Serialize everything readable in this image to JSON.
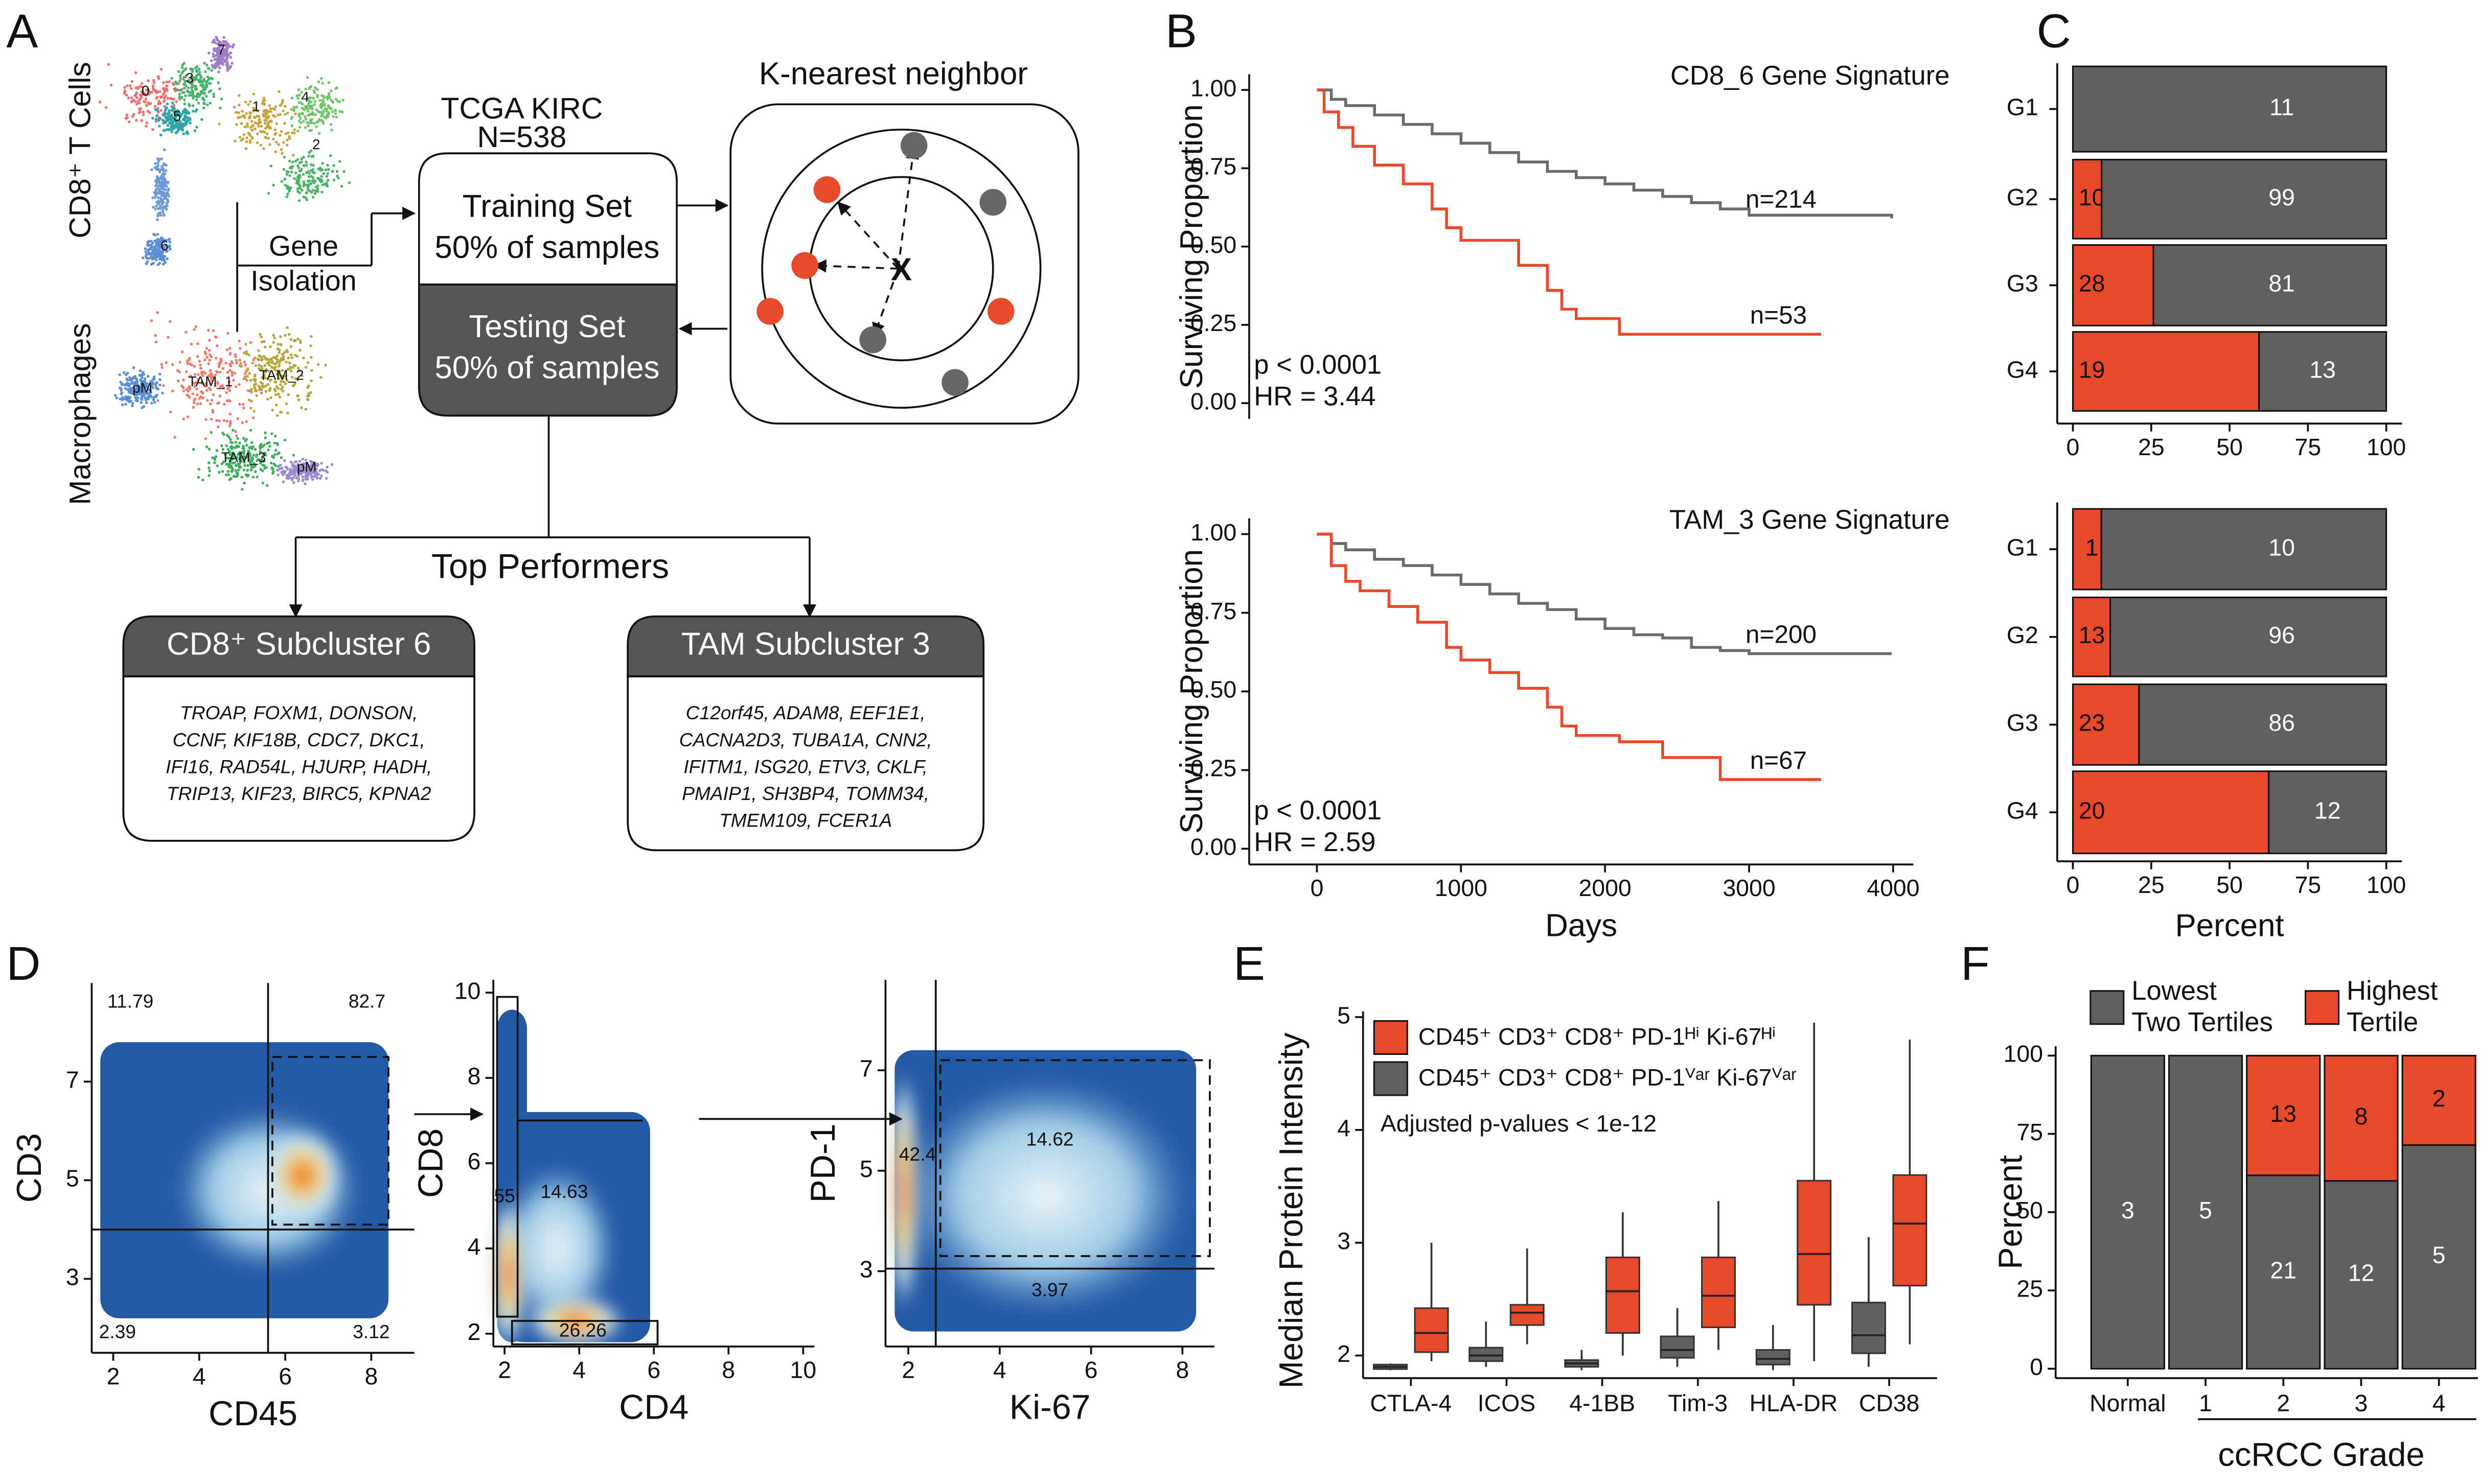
{
  "panel_labels": [
    "A",
    "B",
    "C",
    "D",
    "E",
    "F"
  ],
  "diagram": {
    "cd8_label": "CD8⁺ T Cells",
    "macrophage_label": "Macrophages",
    "umap_cd8_clusters": [
      "0",
      "3",
      "5",
      "1",
      "4",
      "2",
      "7",
      "6"
    ],
    "umap_macrophage_clusters": [
      "TAM_1",
      "TAM_2",
      "TAM_3",
      "pM",
      "pM"
    ],
    "gene_isolation": [
      "Gene",
      "Isolation"
    ],
    "dataset": [
      "TCGA KIRC",
      "N=538"
    ],
    "training_set": [
      "Training Set",
      "50% of samples"
    ],
    "testing_set": [
      "Testing Set",
      "50% of samples"
    ],
    "knn_title": "K-nearest neighbor",
    "knn_query": "X",
    "top_performers": "Top Performers",
    "boxes": [
      {
        "title": "CD8⁺ Subcluster 6",
        "genes": [
          "TROAP, FOXM1, DONSON,",
          "CCNF, KIF18B, CDC7, DKC1,",
          "IFI16, RAD54L, HJURP, HADH,",
          "TRIP13, KIF23, BIRC5, KPNA2"
        ]
      },
      {
        "title": "TAM Subcluster 3",
        "genes": [
          "C12orf45, ADAM8, EEF1E1,",
          "CACNA2D3, TUBA1A, CNN2,",
          "IFITM1, ISG20, ETV3, CKLF,",
          "PMAIP1, SH3BP4, TOMM34,",
          "TMEM109, FCER1A"
        ]
      }
    ]
  },
  "chart_data": [
    {
      "type": "survival",
      "title": "CD8_6 Gene Signature",
      "ylabel": "Surviving Proportion",
      "xlim": [
        -470,
        4140
      ],
      "ylim": [
        -0.05,
        1.05
      ],
      "yticks": [
        {
          "value": 0,
          "label": "0.00"
        },
        {
          "value": 0.25,
          "label": "0.25"
        },
        {
          "value": 0.5,
          "label": "0.50"
        },
        {
          "value": 0.75,
          "label": "0.75"
        },
        {
          "value": 1,
          "label": "1.00"
        }
      ],
      "series": [
        {
          "color": "#6b6b6b",
          "end_label": "n=214",
          "x": [
            0,
            100,
            200,
            400,
            600,
            800,
            1000,
            1200,
            1400,
            1600,
            1800,
            2000,
            2200,
            2400,
            2600,
            2800,
            3000,
            3400,
            3990
          ],
          "values": [
            1,
            0.97,
            0.95,
            0.92,
            0.89,
            0.86,
            0.83,
            0.8,
            0.77,
            0.74,
            0.72,
            0.7,
            0.68,
            0.66,
            0.64,
            0.62,
            0.6,
            0.6,
            0.59
          ]
        },
        {
          "color": "#e8492a",
          "end_label": "n=53",
          "x": [
            0,
            50,
            150,
            250,
            400,
            600,
            800,
            900,
            1000,
            1200,
            1400,
            1600,
            1700,
            1800,
            2100,
            2600,
            3500
          ],
          "values": [
            1,
            0.93,
            0.88,
            0.82,
            0.76,
            0.7,
            0.62,
            0.56,
            0.52,
            0.52,
            0.44,
            0.36,
            0.3,
            0.27,
            0.22,
            0.22,
            0.22
          ]
        }
      ],
      "p_value": "p < 0.0001",
      "hazard_ratio": "HR = 3.44"
    },
    {
      "type": "survival",
      "title": "TAM_3 Gene Signature",
      "ylabel": "Surviving Proportion",
      "xlabel": "Days",
      "xlim": [
        -470,
        4140
      ],
      "ylim": [
        -0.05,
        1.05
      ],
      "xticks": [
        0,
        1000,
        2000,
        3000,
        4000
      ],
      "yticks": [
        {
          "value": 0,
          "label": "0.00"
        },
        {
          "value": 0.25,
          "label": "0.25"
        },
        {
          "value": 0.5,
          "label": "0.50"
        },
        {
          "value": 0.75,
          "label": "0.75"
        },
        {
          "value": 1,
          "label": "1.00"
        }
      ],
      "series": [
        {
          "color": "#6b6b6b",
          "end_label": "n=200",
          "x": [
            0,
            100,
            200,
            400,
            600,
            800,
            1000,
            1200,
            1400,
            1600,
            1800,
            2000,
            2200,
            2400,
            2600,
            2800,
            3000,
            3400,
            3990
          ],
          "values": [
            1,
            0.97,
            0.95,
            0.92,
            0.9,
            0.87,
            0.84,
            0.81,
            0.78,
            0.76,
            0.73,
            0.7,
            0.68,
            0.67,
            0.64,
            0.63,
            0.62,
            0.62,
            0.62
          ]
        },
        {
          "color": "#e8492a",
          "end_label": "n=67",
          "x": [
            0,
            100,
            200,
            300,
            500,
            700,
            900,
            1000,
            1200,
            1400,
            1600,
            1700,
            1800,
            2100,
            2400,
            2800,
            3500
          ],
          "values": [
            1,
            0.9,
            0.85,
            0.82,
            0.77,
            0.72,
            0.64,
            0.6,
            0.56,
            0.51,
            0.45,
            0.39,
            0.36,
            0.34,
            0.29,
            0.22,
            0.22
          ]
        }
      ],
      "p_value": "p < 0.0001",
      "hazard_ratio": "HR = 2.59"
    },
    {
      "type": "bar_stacked_percent",
      "orientation": "horizontal",
      "categories": [
        "G1",
        "G2",
        "G3",
        "G4"
      ],
      "xlim": [
        -5,
        105
      ],
      "xticks": [
        0,
        25,
        50,
        75,
        100
      ],
      "series": [
        {
          "color": "#e8492a",
          "values": [
            0,
            10,
            28,
            19
          ]
        },
        {
          "color": "#606060",
          "values": [
            11,
            99,
            81,
            13
          ]
        }
      ]
    },
    {
      "type": "bar_stacked_percent",
      "orientation": "horizontal",
      "categories": [
        "G1",
        "G2",
        "G3",
        "G4"
      ],
      "xlabel": "Percent",
      "xlim": [
        -5,
        105
      ],
      "xticks": [
        0,
        25,
        50,
        75,
        100
      ],
      "series": [
        {
          "color": "#e8492a",
          "values": [
            1,
            13,
            23,
            20
          ]
        },
        {
          "color": "#606060",
          "values": [
            10,
            96,
            86,
            12
          ]
        }
      ]
    },
    {
      "type": "density",
      "xlabel": "CD45",
      "ylabel": "CD3",
      "xlim": [
        1.5,
        9
      ],
      "ylim": [
        1.5,
        9
      ],
      "xticks": [
        2,
        4,
        6,
        8
      ],
      "yticks": [
        3,
        5,
        7
      ],
      "gate_percentages": [
        11.79,
        82.7,
        2.39,
        3.12
      ]
    },
    {
      "type": "density",
      "xlabel": "CD4",
      "ylabel": "CD8",
      "xlim": [
        1.7,
        10.3
      ],
      "ylim": [
        1.7,
        10.3
      ],
      "xticks": [
        2,
        4,
        6,
        8,
        10
      ],
      "yticks": [
        2,
        4,
        6,
        8,
        10
      ],
      "gate_percentages": [
        55,
        14.63,
        26.26
      ]
    },
    {
      "type": "density",
      "xlabel": "Ki-67",
      "ylabel": "PD-1",
      "xlim": [
        1.5,
        8.7
      ],
      "ylim": [
        1.5,
        8.8
      ],
      "xticks": [
        2,
        4,
        6,
        8
      ],
      "yticks": [
        3,
        5,
        7
      ],
      "gate_percentages": [
        42.4,
        14.62,
        3.97
      ]
    },
    {
      "type": "box",
      "ylabel": "Median Protein Intensity",
      "annotation": "Adjusted p-values < 1e-12",
      "categories": [
        "CTLA-4",
        "ICOS",
        "4-1BB",
        "Tim-3",
        "HLA-DR",
        "CD38"
      ],
      "ylim": [
        1.8,
        5.05
      ],
      "yticks": [
        2,
        3,
        4,
        5
      ],
      "series": [
        {
          "name": "CD45⁺ CD3⁺ CD8⁺ PD-1ᴴⁱ Ki-67ᴴⁱ",
          "color": "#e8492a",
          "values": [
            [
              1.95,
              2.03,
              2.2,
              2.42,
              3.0
            ],
            [
              2.1,
              2.27,
              2.38,
              2.45,
              2.95
            ],
            [
              2.0,
              2.2,
              2.57,
              2.87,
              3.27
            ],
            [
              2.05,
              2.25,
              2.53,
              2.87,
              3.37
            ],
            [
              1.95,
              2.45,
              2.9,
              3.55,
              4.95
            ],
            [
              2.1,
              2.62,
              3.17,
              3.6,
              4.8
            ]
          ]
        },
        {
          "name": "CD45⁺ CD3⁺ CD8⁺ PD-1ⱽᵃʳ Ki-67ⱽᵃʳ",
          "color": "#606060",
          "values": [
            [
              1.87,
              1.88,
              1.9,
              1.92,
              1.93
            ],
            [
              1.9,
              1.95,
              2.0,
              2.07,
              2.3
            ],
            [
              1.87,
              1.9,
              1.93,
              1.96,
              2.05
            ],
            [
              1.9,
              1.98,
              2.05,
              2.17,
              2.42
            ],
            [
              1.87,
              1.92,
              1.97,
              2.05,
              2.27
            ],
            [
              1.9,
              2.02,
              2.18,
              2.47,
              3.05
            ]
          ]
        }
      ]
    },
    {
      "type": "bar_stacked_percent",
      "orientation": "vertical",
      "ylabel": "Percent",
      "xlabel": "ccRCC Grade",
      "categories": [
        "Normal",
        "1",
        "2",
        "3",
        "4"
      ],
      "ylim": [
        -3,
        103
      ],
      "yticks": [
        0,
        25,
        50,
        75,
        100
      ],
      "series": [
        {
          "name": "Lowest Two Tertiles",
          "color": "#606060",
          "values": [
            3,
            5,
            21,
            12,
            5
          ]
        },
        {
          "name": "Highest Tertile",
          "color": "#e8492a",
          "values": [
            0,
            0,
            13,
            8,
            2
          ]
        }
      ]
    }
  ]
}
